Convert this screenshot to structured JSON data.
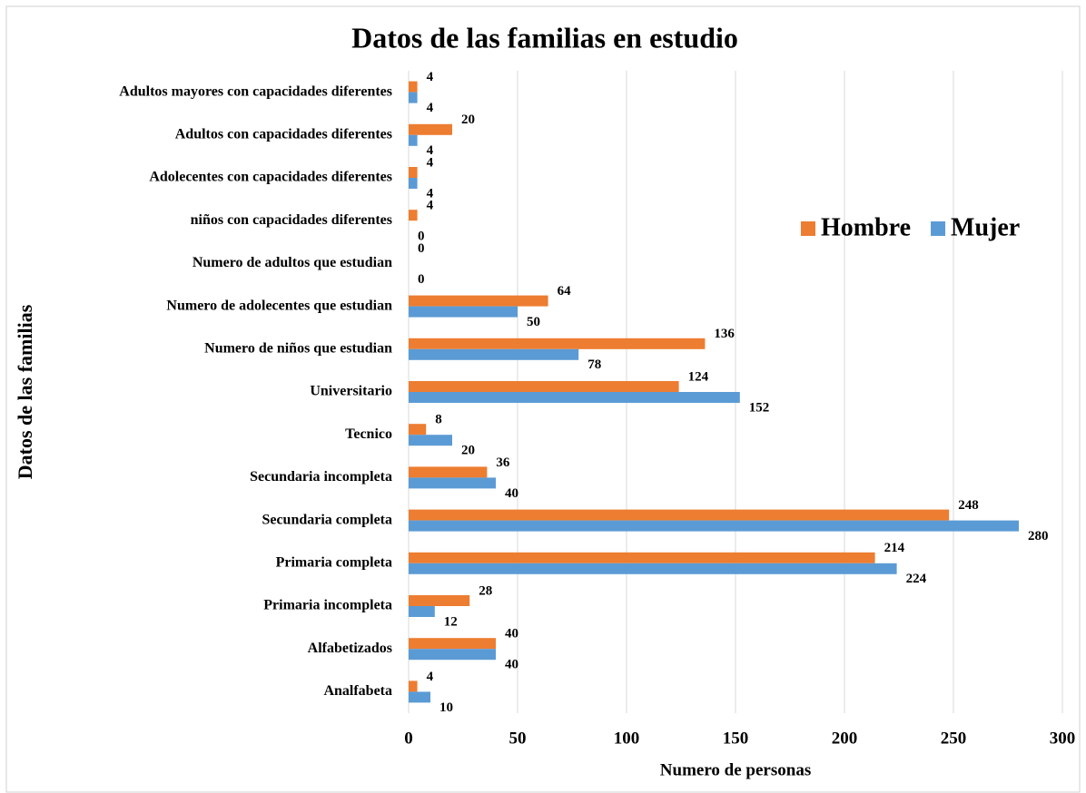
{
  "chart_data": {
    "type": "bar",
    "orientation": "horizontal",
    "title": "Datos de las familias en estudio",
    "x_label": "Numero de personas",
    "y_label": "Datos de las familias",
    "categories": [
      "Analfabeta",
      "Alfabetizados",
      "Primaria incompleta",
      "Primaria completa",
      "Secundaria completa",
      "Secundaria incompleta",
      "Tecnico",
      "Universitario",
      "Numero de niños que estudian",
      "Numero de adolecentes que estudian",
      "Numero de adultos que estudian",
      "niños con capacidades diferentes",
      "Adolecentes con capacidades diferentes",
      "Adultos con capacidades diferentes",
      "Adultos mayores con capacidades diferentes"
    ],
    "series": [
      {
        "name": "Hombre",
        "color": "#ed7d31",
        "values": [
          4,
          40,
          28,
          214,
          248,
          36,
          8,
          124,
          136,
          64,
          0,
          4,
          4,
          20,
          4
        ]
      },
      {
        "name": "Mujer",
        "color": "#5b9bd5",
        "values": [
          10,
          40,
          12,
          224,
          280,
          40,
          20,
          152,
          78,
          50,
          0,
          0,
          4,
          4,
          4
        ]
      }
    ],
    "xlim": [
      0,
      300
    ],
    "xticks": [
      0,
      50,
      100,
      150,
      200,
      250,
      300
    ],
    "grid": true,
    "legend": "right"
  }
}
